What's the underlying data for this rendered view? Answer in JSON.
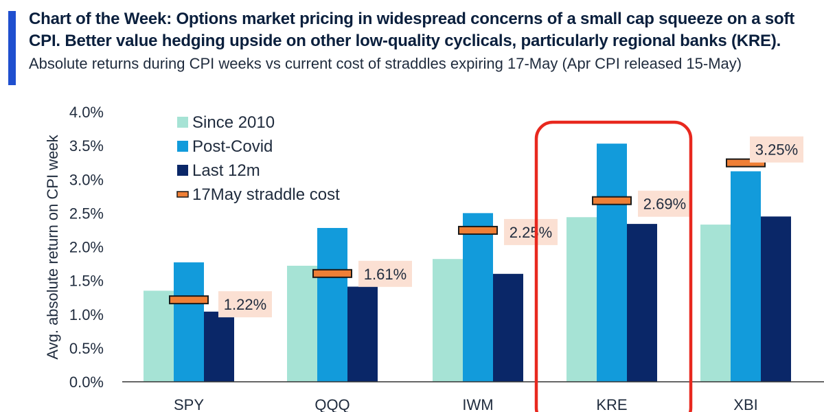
{
  "colors": {
    "accent_bar": "#1f4fcf",
    "since_2010": "#a6e3d5",
    "post_covid": "#129bdb",
    "last_12m": "#0a2768",
    "straddle_fill": "#ef7f36",
    "straddle_stroke": "#1a1a1a",
    "label_bg": "#fbe0d3",
    "highlight": "#e8281e",
    "axis": "#333333",
    "text": "#1f2b3d"
  },
  "header": {
    "title_line1": "Chart of the Week: Options market pricing in widespread concerns of a small cap squeeze on a soft",
    "title_line2": "CPI. Better value hedging upside on other low-quality cyclicals, particularly regional banks (KRE).",
    "subtitle": "Absolute returns during CPI weeks vs current cost of straddles expiring 17-May (Apr CPI released 15-May)"
  },
  "chart_data": {
    "type": "bar",
    "title": "Absolute returns during CPI weeks vs current cost of straddles expiring 17-May (Apr CPI released 15-May)",
    "xlabel": "",
    "ylabel": "Avg. absolute return on CPI week",
    "ylim": [
      0,
      4.0
    ],
    "yticks": [
      0.0,
      0.5,
      1.0,
      1.5,
      2.0,
      2.5,
      3.0,
      3.5,
      4.0
    ],
    "ytick_labels": [
      "0.0%",
      "0.5%",
      "1.0%",
      "1.5%",
      "2.0%",
      "2.5%",
      "3.0%",
      "3.5%",
      "4.0%"
    ],
    "categories": [
      "SPY",
      "QQQ",
      "IWM",
      "KRE",
      "XBI"
    ],
    "series": [
      {
        "name": "Since 2010",
        "color": "#a6e3d5",
        "values": [
          1.35,
          1.72,
          1.82,
          2.44,
          2.33
        ]
      },
      {
        "name": "Post-Covid",
        "color": "#129bdb",
        "values": [
          1.77,
          2.28,
          2.5,
          3.53,
          3.12
        ]
      },
      {
        "name": "Last 12m",
        "color": "#0a2768",
        "values": [
          1.04,
          1.41,
          1.6,
          2.34,
          2.45
        ]
      }
    ],
    "straddle": {
      "name": "17May straddle cost",
      "values": [
        1.22,
        1.61,
        2.25,
        2.69,
        3.25
      ],
      "labels": [
        "1.22%",
        "1.61%",
        "2.25%",
        "2.69%",
        "3.25%"
      ]
    },
    "highlight_category": "KRE",
    "legend": {
      "placement": "top-left",
      "entries": [
        "Since 2010",
        "Post-Covid",
        "Last 12m",
        "17May straddle cost"
      ]
    },
    "grid": false
  }
}
